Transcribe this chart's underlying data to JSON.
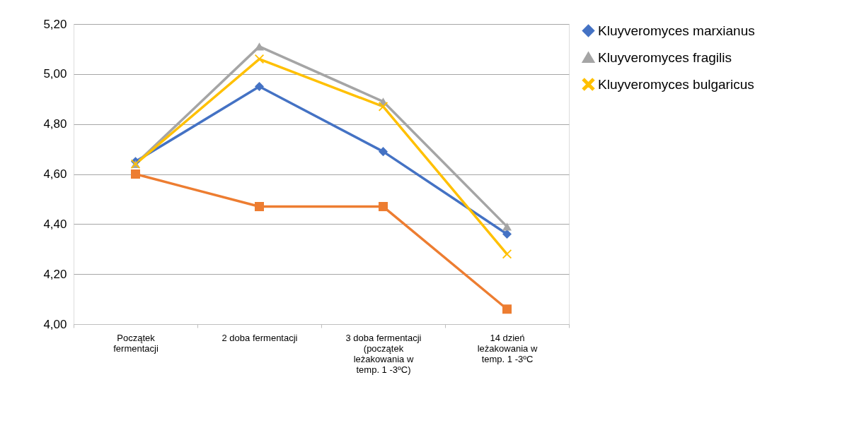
{
  "chart_data": {
    "type": "line",
    "categories": [
      "Początek\nfermentacji",
      "2 doba fermentacji",
      "3 doba fermentacji\n(początek\nleżakowania w\ntemp. 1 -3ºC)",
      "14 dzień\nleżakowania w\ntemp. 1 -3ºC"
    ],
    "series": [
      {
        "name": "Kluyveromyces marxianus",
        "color": "#4472c4",
        "marker": "diamond",
        "values": [
          4.65,
          4.95,
          4.69,
          4.36
        ]
      },
      {
        "color": "#ed7d31",
        "marker": "square",
        "values": [
          4.6,
          4.47,
          4.47,
          4.06
        ]
      },
      {
        "name": "Kluyveromyces fragilis",
        "color": "#a5a5a5",
        "marker": "triangle",
        "values": [
          4.64,
          5.11,
          4.89,
          4.39
        ]
      },
      {
        "name": "Kluyveromyces bulgaricus",
        "color": "#ffc000",
        "marker": "cross",
        "values": [
          4.64,
          5.06,
          4.87,
          4.28
        ]
      }
    ],
    "ylim": [
      4.0,
      5.2
    ],
    "yticks": [
      {
        "value": 4.0,
        "label": "4,00"
      },
      {
        "value": 4.2,
        "label": "4,20"
      },
      {
        "value": 4.4,
        "label": "4,40"
      },
      {
        "value": 4.6,
        "label": "4,60"
      },
      {
        "value": 4.8,
        "label": "4,80"
      },
      {
        "value": 5.0,
        "label": "5,00"
      },
      {
        "value": 5.2,
        "label": "5,20"
      }
    ],
    "grid": "y",
    "legend": "right",
    "line_style": "solid"
  }
}
